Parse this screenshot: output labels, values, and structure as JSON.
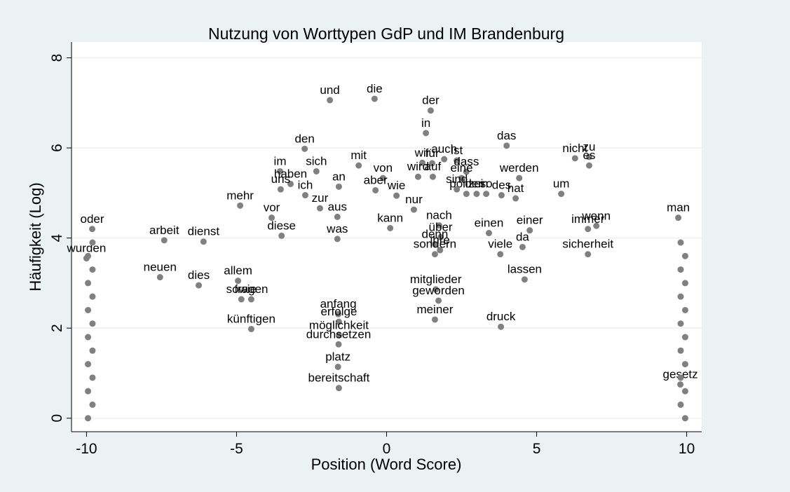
{
  "chart_data": {
    "type": "scatter",
    "title": "Nutzung von Worttypen GdP und IM Brandenburg",
    "x_label": "Position (Word Score)",
    "y_label": "Häufigkeit (Log)",
    "color": "#808080",
    "grid": true,
    "xlim": [
      -10.5,
      10.5
    ],
    "xticks": [
      -10,
      -5,
      0,
      5,
      10
    ],
    "ylim": [
      -0.3,
      8.35
    ],
    "yticks": [
      0,
      2,
      4,
      6,
      8
    ],
    "labels": [
      "und",
      "die",
      "der",
      "in",
      "das",
      "nicht",
      "zu",
      "es",
      "den",
      "mit",
      "von",
      "im",
      "sich",
      "wir",
      "auch",
      "ist",
      "dass",
      "für",
      "werden",
      "wird",
      "auf",
      "eine",
      "polizei",
      "so",
      "des",
      "sind",
      "dem",
      "hat",
      "um",
      "haben",
      "uns",
      "ich",
      "an",
      "aber",
      "wie",
      "nur",
      "mehr",
      "zur",
      "vor",
      "aus",
      "nach",
      "kann",
      "dienst",
      "arbeit",
      "diese",
      "über",
      "denn",
      "ihre",
      "sondern",
      "einen",
      "einer",
      "da",
      "viele",
      "wenn",
      "immer",
      "sicherheit",
      "lassen",
      "neuen",
      "dies",
      "allem",
      "sowie",
      "fragen",
      "künftigen",
      "was",
      "mitglieder",
      "geworden",
      "meiner",
      "druck",
      "anfang",
      "erfolge",
      "möglichkeit",
      "durchsetzen",
      "platz",
      "bereitschaft",
      "oder",
      "wurden",
      "man",
      "gesetz",
      null,
      null,
      null,
      null,
      null,
      null,
      null,
      null,
      null,
      null,
      null,
      null,
      null,
      null,
      null,
      null,
      null,
      null,
      null,
      null,
      null,
      null,
      null,
      null,
      null,
      null,
      null,
      null
    ],
    "x": [
      -1.89,
      -0.4,
      1.47,
      1.31,
      4.0,
      6.28,
      6.75,
      6.75,
      -2.73,
      -0.93,
      -0.12,
      -3.55,
      -2.34,
      1.19,
      1.92,
      2.34,
      2.66,
      1.52,
      4.42,
      1.05,
      1.54,
      2.5,
      2.66,
      3.32,
      3.83,
      2.34,
      3.0,
      4.3,
      5.82,
      -3.2,
      -3.53,
      -2.71,
      -1.59,
      -0.37,
      0.33,
      0.91,
      -4.88,
      -2.22,
      -3.83,
      -1.64,
      1.75,
      0.12,
      -6.1,
      -7.41,
      -3.5,
      1.8,
      1.61,
      1.78,
      1.61,
      3.41,
      4.77,
      4.53,
      3.79,
      6.99,
      6.71,
      6.71,
      4.6,
      -7.55,
      -6.26,
      -4.95,
      -4.84,
      -4.51,
      -4.51,
      -1.64,
      1.64,
      1.73,
      1.61,
      3.81,
      -1.61,
      -1.59,
      -1.59,
      -1.6,
      -1.62,
      -1.59,
      -9.81,
      -10.0,
      9.72,
      9.79,
      -9.95,
      -9.8,
      -9.95,
      -9.8,
      -9.95,
      -9.8,
      -9.95,
      -9.8,
      -9.95,
      -9.8,
      -9.95,
      -9.8,
      -9.95,
      -9.8,
      9.95,
      9.8,
      9.95,
      9.8,
      9.95,
      9.8,
      9.95,
      9.8,
      9.95,
      9.8,
      9.95,
      9.8,
      9.95,
      9.8
    ],
    "y": [
      7.06,
      7.09,
      6.83,
      6.33,
      6.05,
      5.77,
      5.8,
      5.61,
      5.98,
      5.61,
      5.33,
      5.48,
      5.48,
      5.67,
      5.75,
      5.72,
      5.47,
      5.66,
      5.33,
      5.36,
      5.36,
      5.33,
      4.98,
      4.98,
      4.95,
      5.08,
      4.98,
      4.88,
      4.98,
      5.2,
      5.08,
      4.95,
      5.14,
      5.06,
      4.94,
      4.63,
      4.72,
      4.66,
      4.45,
      4.47,
      4.28,
      4.22,
      3.92,
      3.95,
      4.05,
      4.02,
      3.86,
      3.73,
      3.64,
      4.11,
      4.17,
      3.8,
      3.64,
      4.27,
      4.2,
      3.64,
      3.08,
      3.13,
      2.95,
      3.05,
      2.64,
      2.64,
      1.98,
      3.98,
      2.86,
      2.61,
      2.19,
      2.03,
      2.31,
      2.14,
      1.84,
      1.64,
      1.14,
      0.67,
      4.2,
      3.55,
      4.45,
      0.75,
      0.0,
      0.3,
      0.6,
      0.9,
      1.2,
      1.5,
      1.8,
      2.1,
      2.4,
      2.7,
      3.0,
      3.3,
      3.6,
      3.9,
      0.0,
      0.3,
      0.6,
      0.9,
      1.2,
      1.5,
      1.8,
      2.1,
      2.4,
      2.7,
      3.0,
      3.3,
      3.6,
      3.9
    ]
  }
}
